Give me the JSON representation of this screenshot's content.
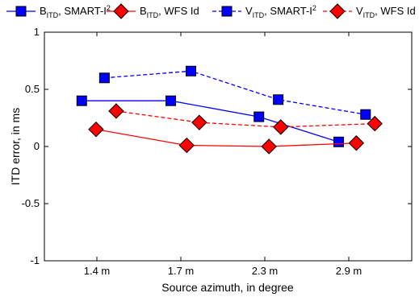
{
  "chart_data": {
    "type": "line",
    "categories": [
      "1.4 m",
      "1.7 m",
      "2.3 m",
      "2.9 m"
    ],
    "xlabel": "Source azimuth, in degree",
    "ylabel": "ITD error, in ms",
    "ylim": [
      -1,
      1
    ],
    "yticks": [
      -1,
      -0.5,
      0,
      0.5,
      1
    ],
    "ytick_labels": [
      "-1",
      "-0.5",
      "0",
      "0.5",
      "1"
    ],
    "grid": false,
    "legend_position": "top",
    "series": [
      {
        "name_main": "B",
        "name_sub": "ITD",
        "name_rest": ", SMART-I",
        "name_sup": "2",
        "color": "#0000ff",
        "marker": "square",
        "marker_fill": "#0000ff",
        "dash": "solid",
        "x": [
          0.82,
          1.88,
          2.93,
          3.88
        ],
        "values": [
          0.4,
          0.4,
          0.26,
          0.04
        ]
      },
      {
        "name_main": "B",
        "name_sub": "ITD",
        "name_rest": ", WFS Id",
        "name_sup": "",
        "color": "#ff0000",
        "marker": "diamond",
        "marker_fill": "#ff0000",
        "dash": "solid",
        "x": [
          0.99,
          2.07,
          3.05,
          4.09
        ],
        "values": [
          0.15,
          0.01,
          0.0,
          0.03
        ]
      },
      {
        "name_main": "V",
        "name_sub": "ITD",
        "name_rest": ", SMART-I",
        "name_sup": "2",
        "color": "#0000ff",
        "marker": "square",
        "marker_fill": "#0000ff",
        "dash": "dashed",
        "x": [
          1.09,
          2.12,
          3.16,
          4.2
        ],
        "values": [
          0.6,
          0.66,
          0.41,
          0.28
        ]
      },
      {
        "name_main": "V",
        "name_sub": "ITD",
        "name_rest": ", WFS Id",
        "name_sup": "",
        "color": "#ff0000",
        "marker": "diamond",
        "marker_fill": "#ff0000",
        "dash": "dashed",
        "x": [
          1.23,
          2.22,
          3.19,
          4.31
        ],
        "values": [
          0.31,
          0.21,
          0.17,
          0.2
        ]
      }
    ]
  }
}
